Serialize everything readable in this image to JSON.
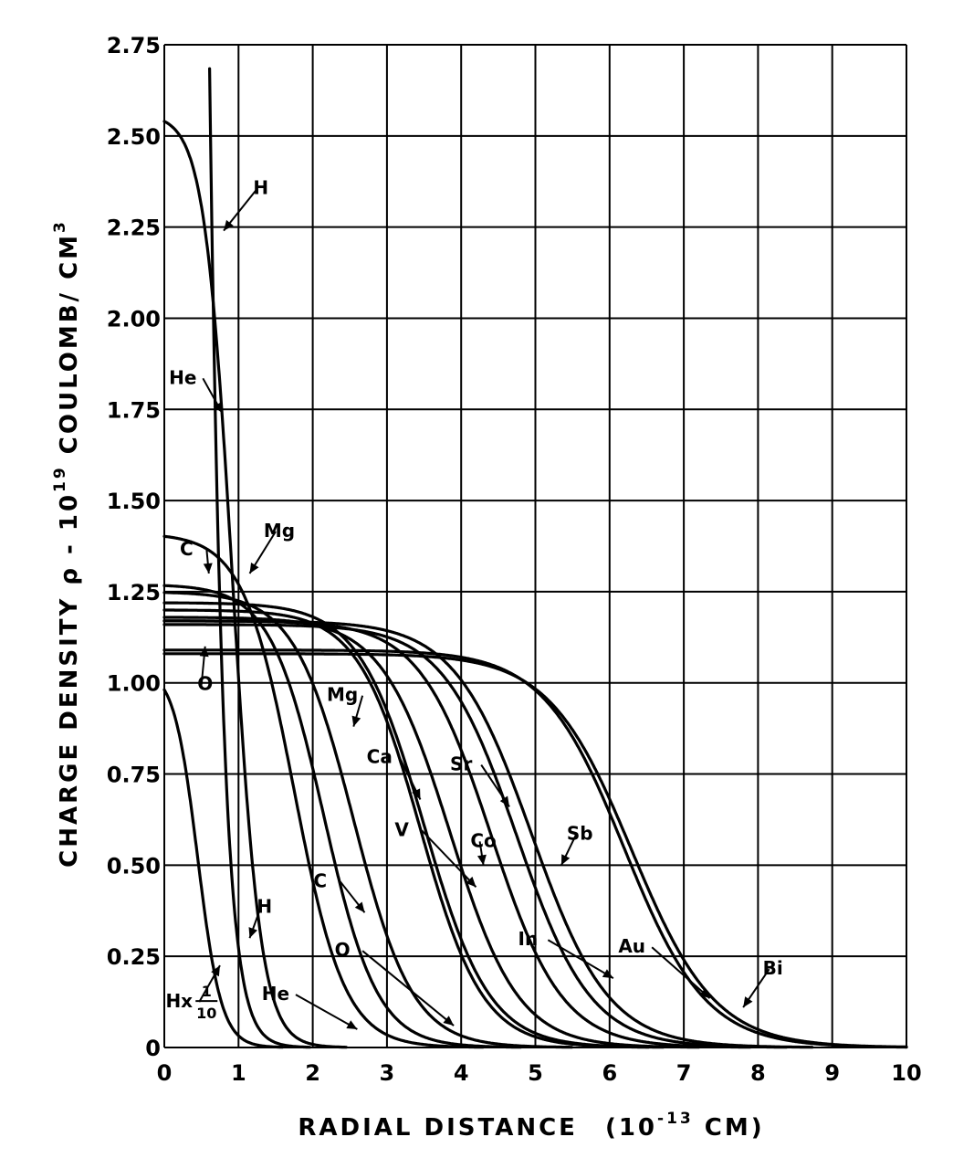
{
  "chart_data": {
    "type": "line",
    "xlabel": "RADIAL DISTANCE",
    "xlabel_unit": "(10",
    "xlabel_exp": "-13",
    "xlabel_unit_end": " CM)",
    "ylabel": "CHARGE DENSITY ρ - 10",
    "ylabel_exp": "19",
    "ylabel_end": " COULOMB/ CM",
    "ylabel_end_exp": "3",
    "xlim": [
      0,
      10
    ],
    "ylim": [
      0,
      2.75
    ],
    "x_ticks": [
      "0",
      "1",
      "2",
      "3",
      "4",
      "5",
      "6",
      "7",
      "8",
      "9",
      "10"
    ],
    "y_ticks": [
      "0",
      "0.25",
      "0.50",
      "0.75",
      "1.00",
      "1.25",
      "1.50",
      "1.75",
      "2.00",
      "2.25",
      "2.50",
      "2.75"
    ],
    "grid": true,
    "series": [
      {
        "name": "Hx 1/10",
        "rho0": 1.04,
        "c": 0.45,
        "a": 0.16
      },
      {
        "name": "H",
        "rho0": 33.0,
        "c": 0.21,
        "a": 0.165
      },
      {
        "name": "He",
        "rho0": 2.56,
        "c": 0.92,
        "a": 0.19
      },
      {
        "name": "C",
        "rho0": 1.41,
        "c": 1.75,
        "a": 0.34
      },
      {
        "name": "O",
        "rho0": 1.27,
        "c": 2.15,
        "a": 0.36
      },
      {
        "name": "Mg",
        "rho0": 1.25,
        "c": 2.55,
        "a": 0.4
      },
      {
        "name": "Ca",
        "rho0": 1.2,
        "c": 3.45,
        "a": 0.42
      },
      {
        "name": "V",
        "rho0": 1.22,
        "c": 3.5,
        "a": 0.44
      },
      {
        "name": "Co",
        "rho0": 1.18,
        "c": 3.85,
        "a": 0.46
      },
      {
        "name": "Sr",
        "rho0": 1.17,
        "c": 4.4,
        "a": 0.48
      },
      {
        "name": "In",
        "rho0": 1.16,
        "c": 4.75,
        "a": 0.5
      },
      {
        "name": "Sb",
        "rho0": 1.17,
        "c": 4.95,
        "a": 0.52
      },
      {
        "name": "Au",
        "rho0": 1.09,
        "c": 6.2,
        "a": 0.55
      },
      {
        "name": "Bi",
        "rho0": 1.08,
        "c": 6.3,
        "a": 0.56
      }
    ],
    "annotations": [
      {
        "text": "H",
        "x": 1.3,
        "y": 2.34,
        "ax": 0.8,
        "ay": 2.24
      },
      {
        "text": "He",
        "x": 0.25,
        "y": 1.82,
        "ax": 0.78,
        "ay": 1.74
      },
      {
        "text": "Mg",
        "x": 1.55,
        "y": 1.4,
        "ax": 1.15,
        "ay": 1.3
      },
      {
        "text": "C",
        "x": 0.3,
        "y": 1.35,
        "ax": 0.6,
        "ay": 1.3
      },
      {
        "text": "O",
        "x": 0.55,
        "y": 0.98,
        "ax": 0.55,
        "ay": 1.1
      },
      {
        "text": "Mg",
        "x": 2.4,
        "y": 0.95,
        "ax": 2.55,
        "ay": 0.88
      },
      {
        "text": "Ca",
        "x": 2.9,
        "y": 0.78,
        "ax": 3.45,
        "ay": 0.68
      },
      {
        "text": "Sr",
        "x": 4.0,
        "y": 0.76,
        "ax": 4.65,
        "ay": 0.66
      },
      {
        "text": "Sb",
        "x": 5.6,
        "y": 0.57,
        "ax": 5.35,
        "ay": 0.5
      },
      {
        "text": "V",
        "x": 3.2,
        "y": 0.58,
        "ax": 4.2,
        "ay": 0.44
      },
      {
        "text": "Co",
        "x": 4.3,
        "y": 0.55,
        "ax": 4.3,
        "ay": 0.5
      },
      {
        "text": "C",
        "x": 2.1,
        "y": 0.44,
        "ax": 2.7,
        "ay": 0.37
      },
      {
        "text": "H",
        "x": 1.35,
        "y": 0.37,
        "ax": 1.15,
        "ay": 0.3
      },
      {
        "text": "In",
        "x": 4.9,
        "y": 0.28,
        "ax": 6.05,
        "ay": 0.19
      },
      {
        "text": "O",
        "x": 2.4,
        "y": 0.25,
        "ax": 3.9,
        "ay": 0.06
      },
      {
        "text": "Au",
        "x": 6.3,
        "y": 0.26,
        "ax": 7.35,
        "ay": 0.135
      },
      {
        "text": "Bi",
        "x": 8.2,
        "y": 0.2,
        "ax": 7.8,
        "ay": 0.11
      },
      {
        "text": "He",
        "x": 1.5,
        "y": 0.13,
        "ax": 2.6,
        "ay": 0.05
      },
      {
        "text": "Hx",
        "x": 0.2,
        "y": 0.11,
        "ax": 0.75,
        "ay": 0.225,
        "frac_num": "1",
        "frac_den": "10"
      }
    ]
  }
}
